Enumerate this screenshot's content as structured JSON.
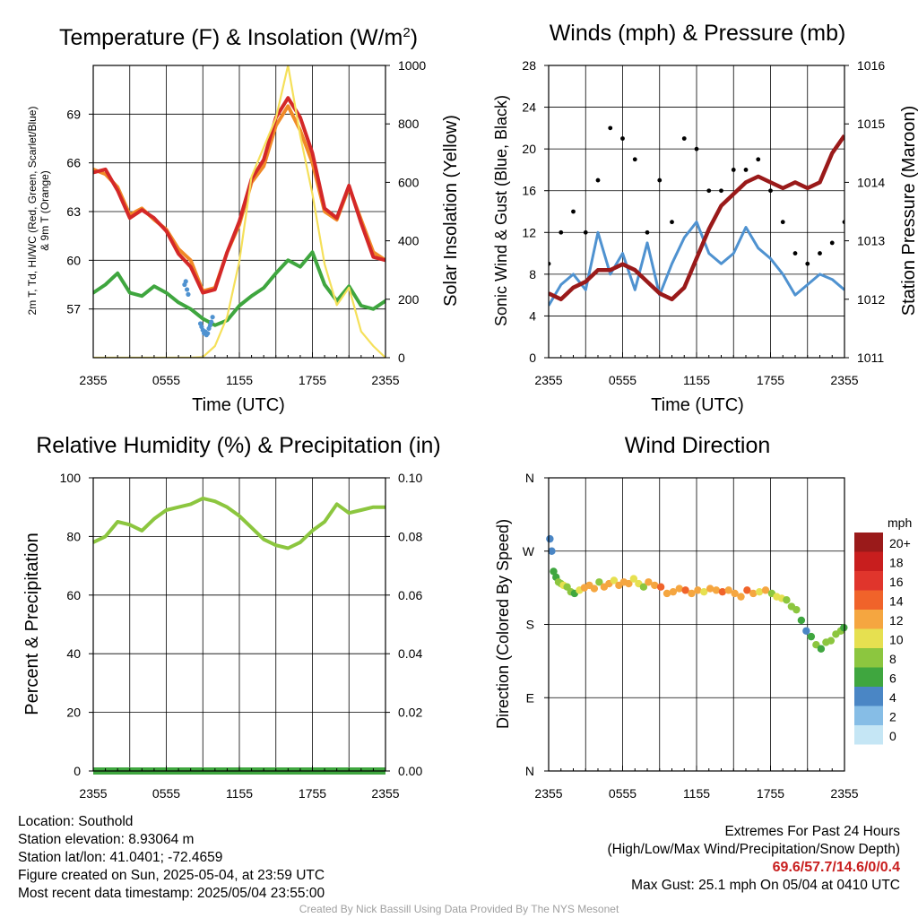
{
  "x_ticks": [
    "2355",
    "0555",
    "1155",
    "1755",
    "2355"
  ],
  "chart_data": [
    {
      "type": "line",
      "title": "Temperature (F) & Insolation (W/m²)",
      "xlabel": "Time (UTC)",
      "ylabel": "2m T, Td, HI/WC (Red, Green, Scarlet/Blue) & 9m T (Orange)",
      "ylabel_line1": "2m T, Td, HI/WC (Red, Green, Scarlet/Blue)",
      "ylabel_line2": "& 9m T (Orange)",
      "ylabel_right": "Solar Insolation (Yellow)",
      "ylim": [
        54,
        72
      ],
      "ylim_right": [
        0,
        1000
      ],
      "yticks": [
        57,
        60,
        63,
        66,
        69
      ],
      "yticks_right": [
        0,
        200,
        400,
        600,
        800,
        1000
      ],
      "x_hours": [
        0,
        1,
        2,
        3,
        4,
        5,
        6,
        7,
        8,
        9,
        10,
        11,
        12,
        13,
        14,
        15,
        16,
        17,
        18,
        19,
        20,
        21,
        22,
        23,
        24
      ],
      "series": [
        {
          "key": "temp_9m",
          "color": "#f08a28",
          "values": [
            65.6,
            65.3,
            64.5,
            62.8,
            63.2,
            62.5,
            61.9,
            60.7,
            60.0,
            58.1,
            58.3,
            60.5,
            62.2,
            64.8,
            65.8,
            68.3,
            69.5,
            68.0,
            66.0,
            63.0,
            62.5,
            64.5,
            62.5,
            60.5,
            60.0
          ]
        },
        {
          "key": "temp_2m",
          "color": "#d42828",
          "values": [
            65.4,
            65.6,
            64.3,
            62.6,
            63.1,
            62.6,
            61.8,
            60.4,
            59.6,
            58.0,
            58.2,
            60.5,
            62.4,
            65.0,
            66.2,
            68.8,
            70.0,
            68.8,
            66.6,
            63.2,
            62.6,
            64.6,
            62.3,
            60.2,
            60.0
          ]
        },
        {
          "key": "dewpoint",
          "color": "#3fa63f",
          "values": [
            58.0,
            58.5,
            59.2,
            58.0,
            57.8,
            58.4,
            58.0,
            57.4,
            57.0,
            56.4,
            56.0,
            56.3,
            57.2,
            57.8,
            58.3,
            59.2,
            60.0,
            59.6,
            60.5,
            58.5,
            57.5,
            58.4,
            57.2,
            57.0,
            57.5
          ]
        },
        {
          "key": "solar",
          "axis": "right",
          "color": "#f5e05a",
          "values": [
            0,
            0,
            0,
            0,
            0,
            0,
            0,
            0,
            0,
            2,
            40,
            140,
            330,
            620,
            720,
            820,
            1000,
            760,
            560,
            320,
            180,
            240,
            90,
            40,
            0
          ]
        }
      ],
      "windchill_x": [
        7.5,
        7.6,
        7.7,
        7.8,
        8.8,
        8.9,
        9.0,
        9.1,
        9.2,
        9.3,
        9.4,
        9.5,
        9.6,
        9.7,
        9.8
      ],
      "windchill_y": [
        58.5,
        58.7,
        58.2,
        57.9,
        56.1,
        55.9,
        55.7,
        55.5,
        55.6,
        55.4,
        55.5,
        55.8,
        56.0,
        56.2,
        56.5
      ]
    },
    {
      "type": "line",
      "title": "Winds (mph) & Pressure (mb)",
      "xlabel": "Time (UTC)",
      "ylabel": "Sonic Wind & Gust (Blue, Black)",
      "ylabel_right": "Station Pressure (Maroon)",
      "ylim": [
        0,
        28
      ],
      "ylim_right": [
        1011,
        1016
      ],
      "yticks": [
        0,
        4,
        8,
        12,
        16,
        20,
        24,
        28
      ],
      "yticks_right": [
        1011,
        1012,
        1013,
        1014,
        1015,
        1016
      ],
      "x_hours": [
        0,
        1,
        2,
        3,
        4,
        5,
        6,
        7,
        8,
        9,
        10,
        11,
        12,
        13,
        14,
        15,
        16,
        17,
        18,
        19,
        20,
        21,
        22,
        23,
        24
      ],
      "series": [
        {
          "key": "wind",
          "color": "#4f92d0",
          "values": [
            5.0,
            7.0,
            8.0,
            6.5,
            12.0,
            8.0,
            10.0,
            6.5,
            11.0,
            6.0,
            9.0,
            11.5,
            13.0,
            10.0,
            9.0,
            10.0,
            12.5,
            10.5,
            9.5,
            8.0,
            6.0,
            7.0,
            8.0,
            7.5,
            6.5
          ]
        },
        {
          "key": "gust",
          "color": "#000000",
          "values": [
            9,
            12,
            14,
            12,
            17,
            22,
            21,
            19,
            12,
            17,
            13,
            21,
            20,
            16,
            16,
            18,
            18,
            19,
            16,
            13,
            10,
            9,
            10,
            11,
            13
          ]
        },
        {
          "key": "pressure",
          "axis": "right",
          "color": "#9a1a1a",
          "values": [
            1012.1,
            1012.0,
            1012.2,
            1012.3,
            1012.5,
            1012.5,
            1012.6,
            1012.5,
            1012.3,
            1012.1,
            1012.0,
            1012.2,
            1012.7,
            1013.2,
            1013.6,
            1013.8,
            1014.0,
            1014.1,
            1014.0,
            1013.9,
            1014.0,
            1013.9,
            1014.0,
            1014.5,
            1014.8
          ]
        }
      ]
    },
    {
      "type": "line",
      "title": "Relative Humidity (%) & Precipitation (in)",
      "ylabel": "Percent & Precipitation",
      "ylim": [
        0,
        100
      ],
      "ylim_right": [
        0,
        0.1
      ],
      "yticks": [
        0,
        20,
        40,
        60,
        80,
        100
      ],
      "yticks_right": [
        "0.00",
        "0.02",
        "0.04",
        "0.06",
        "0.08",
        "0.10"
      ],
      "x_hours": [
        0,
        1,
        2,
        3,
        4,
        5,
        6,
        7,
        8,
        9,
        10,
        11,
        12,
        13,
        14,
        15,
        16,
        17,
        18,
        19,
        20,
        21,
        22,
        23,
        24
      ],
      "series": [
        {
          "key": "rh",
          "color": "#8cc63f",
          "values": [
            78,
            80,
            85,
            84,
            82,
            86,
            89,
            90,
            91,
            93,
            92,
            90,
            87,
            83,
            79,
            77,
            76,
            78,
            82,
            85,
            91,
            88,
            89,
            90,
            90
          ]
        },
        {
          "key": "precip",
          "axis": "right",
          "color": "#3fa63f",
          "values": [
            0,
            0,
            0,
            0,
            0,
            0,
            0,
            0,
            0,
            0,
            0,
            0,
            0,
            0,
            0,
            0,
            0,
            0,
            0,
            0,
            0,
            0,
            0,
            0,
            0
          ]
        }
      ]
    },
    {
      "type": "scatter",
      "title": "Wind Direction",
      "ylabel": "Direction (Colored By Speed)",
      "yticks": [
        "N",
        "E",
        "S",
        "W",
        "N"
      ],
      "ylim": [
        0,
        360
      ],
      "x_hours": [
        0.1,
        0.25,
        0.4,
        0.6,
        0.8,
        1.0,
        1.2,
        1.5,
        1.8,
        2.1,
        2.5,
        2.9,
        3.3,
        3.7,
        4.1,
        4.5,
        4.9,
        5.3,
        5.7,
        6.1,
        6.5,
        6.9,
        7.3,
        7.7,
        8.1,
        8.6,
        9.1,
        9.6,
        10.1,
        10.6,
        11.1,
        11.6,
        12.1,
        12.6,
        13.1,
        13.6,
        14.1,
        14.6,
        15.1,
        15.6,
        16.1,
        16.6,
        17.1,
        17.6,
        18.1,
        18.5,
        18.9,
        19.3,
        19.7,
        20.1,
        20.5,
        20.9,
        21.3,
        21.7,
        22.1,
        22.5,
        22.9,
        23.3,
        23.7,
        23.95
      ],
      "direction_deg": [
        285,
        270,
        245,
        238,
        232,
        230,
        228,
        226,
        220,
        218,
        222,
        225,
        228,
        224,
        232,
        226,
        230,
        234,
        228,
        232,
        230,
        236,
        230,
        226,
        232,
        228,
        226,
        218,
        220,
        224,
        222,
        218,
        222,
        220,
        224,
        222,
        220,
        222,
        218,
        214,
        222,
        218,
        220,
        222,
        218,
        214,
        212,
        210,
        202,
        198,
        185,
        172,
        165,
        155,
        150,
        158,
        160,
        168,
        172,
        176
      ],
      "speed_mph": [
        4,
        4,
        5,
        6,
        7,
        8,
        9,
        8,
        7,
        6,
        10,
        11,
        12,
        11,
        7,
        12,
        11,
        10,
        11,
        12,
        11,
        10,
        9,
        8,
        11,
        12,
        13,
        12,
        11,
        12,
        13,
        12,
        11,
        10,
        11,
        12,
        13,
        12,
        11,
        12,
        13,
        11,
        10,
        12,
        8,
        9,
        10,
        8,
        7,
        8,
        6,
        4,
        6,
        7,
        6,
        7,
        8,
        7,
        8,
        5
      ]
    }
  ],
  "legend": {
    "unit": "mph",
    "labels": [
      "20+",
      "18",
      "16",
      "14",
      "12",
      "10",
      "8",
      "6",
      "4",
      "2",
      "0"
    ],
    "colors": [
      "#9a1a1a",
      "#c81e1e",
      "#e0352c",
      "#f0632a",
      "#f5a640",
      "#e6e050",
      "#8cc63f",
      "#3fa63f",
      "#4a86c5",
      "#86bde6",
      "#c5e6f5"
    ]
  },
  "info": {
    "location": "Location: Southold",
    "elevation": "Station elevation: 8.93064 m",
    "latlon": "Station lat/lon: 41.0401; -72.4659",
    "created": "Figure created on Sun, 2025-05-04, at 23:59 UTC",
    "recent": "Most recent data timestamp: 2025/05/04 23:55:00"
  },
  "extremes": {
    "title": "Extremes For Past 24 Hours",
    "subtitle": "(High/Low/Max Wind/Precipitation/Snow Depth)",
    "values": "69.6/57.7/14.6/0/0.4",
    "gust": "Max Gust: 25.1 mph On 05/04 at 0410 UTC"
  },
  "credit": "Created By Nick Bassill Using Data Provided By The NYS Mesonet"
}
